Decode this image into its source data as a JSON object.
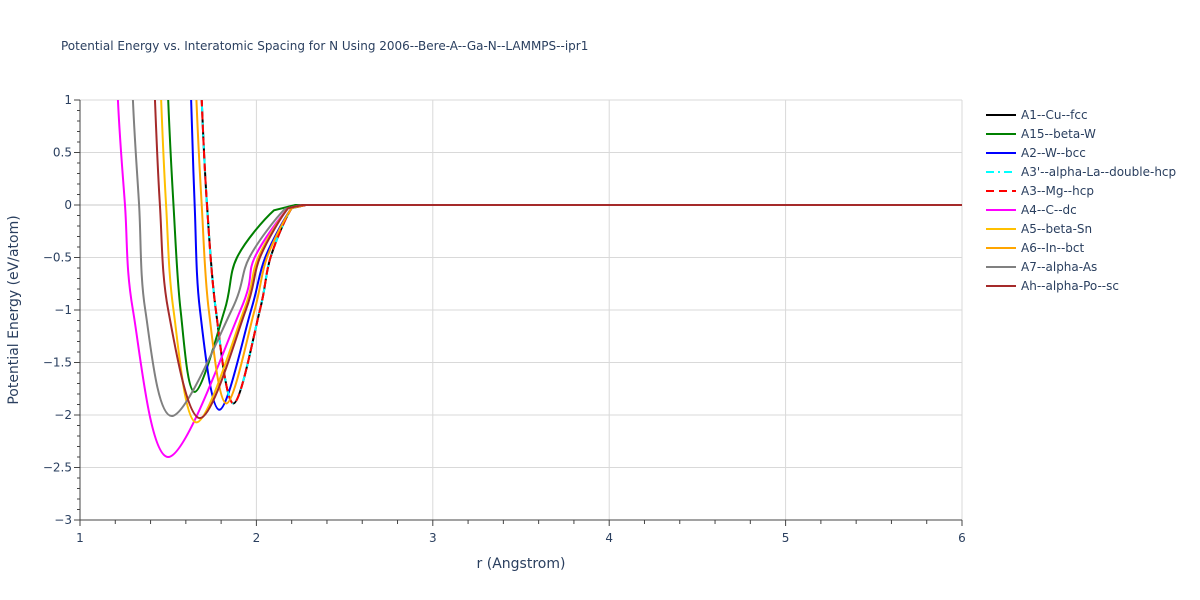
{
  "chart_data": {
    "type": "line",
    "title": "Potential Energy vs. Interatomic Spacing for N Using 2006--Bere-A--Ga-N--LAMMPS--ipr1",
    "xlabel": "r (Angstrom)",
    "ylabel": "Potential Energy (eV/atom)",
    "xlim": [
      1,
      6
    ],
    "ylim": [
      -3,
      1
    ],
    "xticks": [
      1,
      2,
      3,
      4,
      5,
      6
    ],
    "yticks": [
      1,
      0.5,
      0,
      -0.5,
      -1,
      -1.5,
      -2,
      -2.5,
      -3
    ],
    "ytick_labels": [
      "1",
      "0.5",
      "0",
      "−0.5",
      "−1",
      "−1.5",
      "−2",
      "−2.5",
      "−3"
    ],
    "grid": true,
    "legend": "right",
    "series": [
      {
        "name": "A1--Cu--fcc",
        "color": "#000000",
        "dash": "solid",
        "x": [
          1.69,
          1.72,
          1.77,
          1.87,
          2.02,
          2.08,
          2.2,
          2.28,
          6
        ],
        "y": [
          1,
          0,
          -1,
          -1.89,
          -1,
          -0.5,
          -0.03,
          0,
          0
        ]
      },
      {
        "name": "A15--beta-W",
        "color": "#008000",
        "dash": "solid",
        "x": [
          1.5,
          1.53,
          1.57,
          1.65,
          1.82,
          1.89,
          2.1,
          2.22,
          6
        ],
        "y": [
          1,
          0,
          -1,
          -1.78,
          -1,
          -0.5,
          -0.05,
          0,
          0
        ]
      },
      {
        "name": "A2--W--bcc",
        "color": "#0000ff",
        "dash": "solid",
        "x": [
          1.63,
          1.65,
          1.68,
          1.79,
          1.97,
          2.05,
          2.2,
          2.27,
          6
        ],
        "y": [
          1,
          0,
          -1,
          -1.95,
          -1,
          -0.5,
          -0.03,
          0,
          0
        ]
      },
      {
        "name": "A3'--alpha-La--double-hcp",
        "color": "#00ffff",
        "dash": "dashdot",
        "x": [
          1.69,
          1.72,
          1.77,
          1.87,
          2.02,
          2.08,
          2.2,
          2.28,
          6
        ],
        "y": [
          1,
          0,
          -1,
          -1.89,
          -1,
          -0.5,
          -0.03,
          0,
          0
        ]
      },
      {
        "name": "A3--Mg--hcp",
        "color": "#ff0000",
        "dash": "dash",
        "x": [
          1.69,
          1.72,
          1.77,
          1.87,
          2.02,
          2.08,
          2.2,
          2.28,
          6
        ],
        "y": [
          1,
          0,
          -1,
          -1.89,
          -1,
          -0.5,
          -0.03,
          0,
          0
        ]
      },
      {
        "name": "A4--C--dc",
        "color": "#ff00ff",
        "dash": "solid",
        "x": [
          1.215,
          1.255,
          1.3,
          1.5,
          1.91,
          1.99,
          2.18,
          2.26,
          6
        ],
        "y": [
          1,
          0,
          -1,
          -2.4,
          -1,
          -0.5,
          -0.03,
          0,
          0
        ]
      },
      {
        "name": "A5--beta-Sn",
        "color": "#ffc000",
        "dash": "solid",
        "x": [
          1.46,
          1.488,
          1.53,
          1.66,
          1.93,
          2.01,
          2.18,
          2.26,
          6
        ],
        "y": [
          1,
          0,
          -1,
          -2.07,
          -1,
          -0.5,
          -0.03,
          0,
          0
        ]
      },
      {
        "name": "A6--In--bct",
        "color": "#ffa500",
        "dash": "solid",
        "x": [
          1.66,
          1.69,
          1.73,
          1.83,
          1.99,
          2.06,
          2.2,
          2.27,
          6
        ],
        "y": [
          1,
          0,
          -1,
          -1.89,
          -1,
          -0.5,
          -0.03,
          0,
          0
        ]
      },
      {
        "name": "A7--alpha-As",
        "color": "#808080",
        "dash": "solid",
        "x": [
          1.3,
          1.335,
          1.37,
          1.52,
          1.86,
          1.96,
          2.16,
          2.25,
          6
        ],
        "y": [
          1,
          0,
          -1,
          -2.01,
          -1,
          -0.5,
          -0.04,
          0,
          0
        ]
      },
      {
        "name": "Ah--alpha-Po--sc",
        "color": "#a52a2a",
        "dash": "solid",
        "x": [
          1.425,
          1.453,
          1.5,
          1.68,
          1.94,
          2.02,
          2.18,
          2.26,
          6
        ],
        "y": [
          1,
          0,
          -1,
          -2.03,
          -1,
          -0.5,
          -0.03,
          0,
          0
        ]
      }
    ]
  }
}
